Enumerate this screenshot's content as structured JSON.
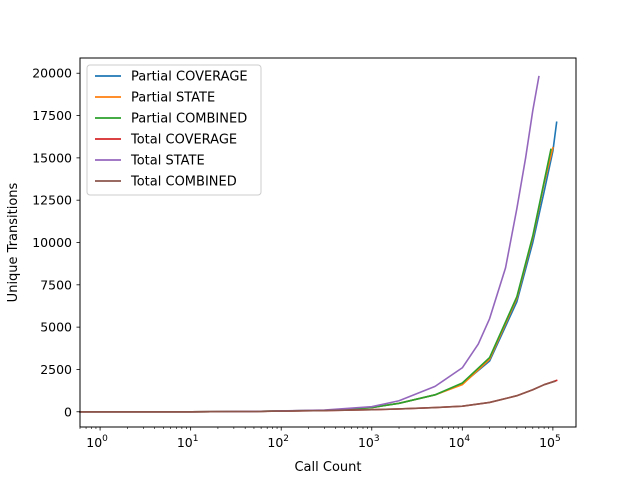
{
  "chart_data": {
    "type": "line",
    "xlabel": "Call Count",
    "ylabel": "Unique Transitions",
    "xscale": "log",
    "xlim": [
      0.6,
      180000
    ],
    "ylim": [
      -900,
      20900
    ],
    "x_ticks": [
      {
        "value": 1,
        "base": "10",
        "exp": "0"
      },
      {
        "value": 10,
        "base": "10",
        "exp": "1"
      },
      {
        "value": 100,
        "base": "10",
        "exp": "2"
      },
      {
        "value": 1000,
        "base": "10",
        "exp": "3"
      },
      {
        "value": 10000,
        "base": "10",
        "exp": "4"
      },
      {
        "value": 100000,
        "base": "10",
        "exp": "5"
      }
    ],
    "y_ticks": [
      {
        "value": 0,
        "label": "0"
      },
      {
        "value": 2500,
        "label": "2500"
      },
      {
        "value": 5000,
        "label": "5000"
      },
      {
        "value": 7500,
        "label": "7500"
      },
      {
        "value": 10000,
        "label": "10000"
      },
      {
        "value": 12500,
        "label": "12500"
      },
      {
        "value": 15000,
        "label": "15000"
      },
      {
        "value": 17500,
        "label": "17500"
      },
      {
        "value": 20000,
        "label": "20000"
      }
    ],
    "grid": false,
    "legend_position": "top-left",
    "series": [
      {
        "name": "Partial COVERAGE",
        "color": "#1f77b4",
        "points": [
          [
            0.6,
            0
          ],
          [
            1,
            0
          ],
          [
            10,
            0
          ],
          [
            50,
            20
          ],
          [
            100,
            50
          ],
          [
            300,
            80
          ],
          [
            1000,
            250
          ],
          [
            2000,
            500
          ],
          [
            5000,
            1000
          ],
          [
            10000,
            1650
          ],
          [
            20000,
            3000
          ],
          [
            40000,
            6500
          ],
          [
            60000,
            10000
          ],
          [
            80000,
            13000
          ],
          [
            100000,
            15400
          ],
          [
            110000,
            17100
          ]
        ]
      },
      {
        "name": "Partial STATE",
        "color": "#ff7f0e",
        "points": [
          [
            0.6,
            0
          ],
          [
            1,
            0
          ],
          [
            10,
            0
          ],
          [
            50,
            20
          ],
          [
            100,
            50
          ],
          [
            300,
            80
          ],
          [
            1000,
            250
          ],
          [
            2000,
            500
          ],
          [
            5000,
            1000
          ],
          [
            10000,
            1600
          ],
          [
            20000,
            3100
          ],
          [
            40000,
            6700
          ],
          [
            60000,
            10300
          ],
          [
            80000,
            13500
          ],
          [
            100000,
            15600
          ]
        ]
      },
      {
        "name": "Partial COMBINED",
        "color": "#2ca02c",
        "points": [
          [
            0.6,
            0
          ],
          [
            1,
            0
          ],
          [
            10,
            0
          ],
          [
            50,
            20
          ],
          [
            100,
            50
          ],
          [
            300,
            80
          ],
          [
            1000,
            250
          ],
          [
            2000,
            500
          ],
          [
            5000,
            1000
          ],
          [
            10000,
            1700
          ],
          [
            20000,
            3200
          ],
          [
            40000,
            6800
          ],
          [
            60000,
            10400
          ],
          [
            80000,
            13600
          ],
          [
            95000,
            15500
          ]
        ]
      },
      {
        "name": "Total COVERAGE",
        "color": "#d62728",
        "points": [
          [
            0.6,
            0
          ],
          [
            1,
            0
          ],
          [
            10,
            0
          ],
          [
            50,
            15
          ],
          [
            100,
            40
          ],
          [
            300,
            70
          ],
          [
            1000,
            120
          ],
          [
            2000,
            170
          ],
          [
            5000,
            250
          ],
          [
            10000,
            330
          ],
          [
            20000,
            550
          ],
          [
            40000,
            950
          ],
          [
            60000,
            1300
          ],
          [
            80000,
            1600
          ],
          [
            110000,
            1850
          ]
        ]
      },
      {
        "name": "Total STATE",
        "color": "#9467bd",
        "points": [
          [
            0.6,
            0
          ],
          [
            1,
            0
          ],
          [
            10,
            0
          ],
          [
            50,
            20
          ],
          [
            100,
            50
          ],
          [
            300,
            100
          ],
          [
            1000,
            300
          ],
          [
            2000,
            650
          ],
          [
            5000,
            1500
          ],
          [
            10000,
            2600
          ],
          [
            15000,
            4000
          ],
          [
            20000,
            5500
          ],
          [
            30000,
            8500
          ],
          [
            40000,
            12000
          ],
          [
            50000,
            15000
          ],
          [
            60000,
            17800
          ],
          [
            70000,
            19800
          ]
        ]
      },
      {
        "name": "Total COMBINED",
        "color": "#8c564b",
        "points": [
          [
            0.6,
            0
          ],
          [
            1,
            0
          ],
          [
            10,
            0
          ],
          [
            50,
            15
          ],
          [
            100,
            40
          ],
          [
            300,
            70
          ],
          [
            1000,
            120
          ],
          [
            2000,
            170
          ],
          [
            5000,
            250
          ],
          [
            10000,
            330
          ],
          [
            20000,
            550
          ],
          [
            40000,
            950
          ],
          [
            60000,
            1300
          ],
          [
            80000,
            1600
          ],
          [
            105000,
            1800
          ]
        ]
      }
    ]
  }
}
